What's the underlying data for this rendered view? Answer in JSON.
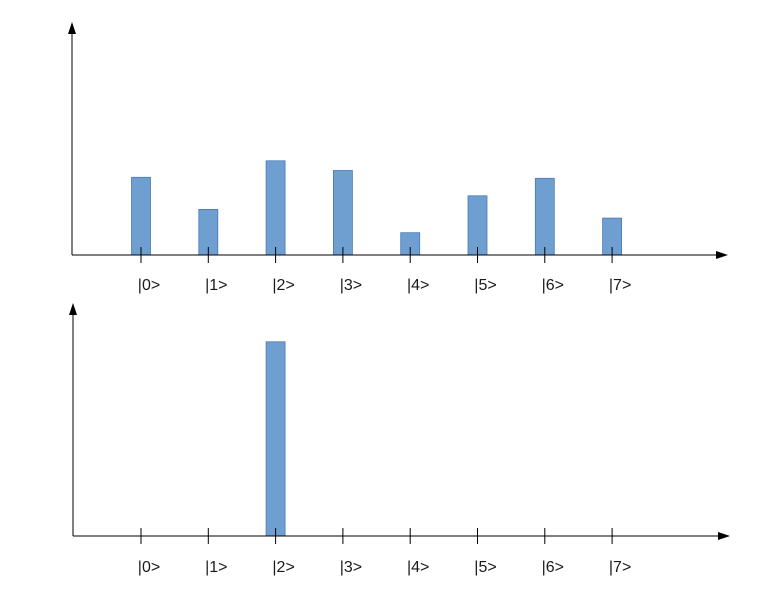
{
  "bar_color": "#6f9fd1",
  "bar_edge_color": "#4a7ab3",
  "axis_color": "#000000",
  "chart_data": [
    {
      "type": "bar",
      "categories": [
        "|0>",
        "|1>",
        "|2>",
        "|3>",
        "|4>",
        "|5>",
        "|6>",
        "|7>"
      ],
      "values": [
        0.8,
        0.47,
        0.97,
        0.87,
        0.23,
        0.61,
        0.79,
        0.38
      ],
      "ylim": [
        0,
        2.4
      ],
      "grid": false
    },
    {
      "type": "bar",
      "categories": [
        "|0>",
        "|1>",
        "|2>",
        "|3>",
        "|4>",
        "|5>",
        "|6>",
        "|7>"
      ],
      "values": [
        0,
        0,
        1,
        0,
        0,
        0,
        0,
        0
      ],
      "ylim": [
        0,
        1.2
      ],
      "grid": false
    }
  ]
}
